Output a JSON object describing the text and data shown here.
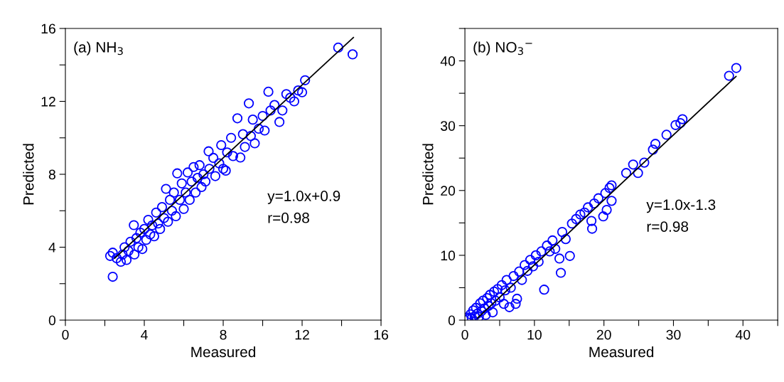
{
  "chart_data": [
    {
      "type": "scatter",
      "xlabel": "Measured",
      "ylabel": "Predicted",
      "annotations": [
        "(a) NH$_{3}$",
        "y=1.0x+0.9",
        "r=0.98"
      ],
      "xlim": [
        0,
        16
      ],
      "ylim": [
        0,
        16
      ],
      "xticks": [
        0,
        {
          "value": 2,
          "label": null
        },
        4,
        {
          "value": 6,
          "label": null
        },
        8,
        {
          "value": 10,
          "label": null
        },
        12,
        {
          "value": 14,
          "label": null
        },
        16
      ],
      "yticks": [
        0,
        {
          "value": 2,
          "label": null
        },
        4,
        {
          "value": 6,
          "label": null
        },
        8,
        {
          "value": 10,
          "label": null
        },
        12,
        {
          "value": 14,
          "label": null
        },
        16
      ],
      "grid": false,
      "legend": false,
      "marker": "circle",
      "series": [
        {
          "color": "#0000ff",
          "x": [
            2.27,
            2.4,
            2.4,
            2.6,
            2.81,
            2.9,
            3.0,
            3.1,
            3.2,
            3.3,
            3.47,
            3.5,
            3.6,
            3.7,
            3.8,
            3.9,
            4.0,
            4.1,
            4.2,
            4.3,
            4.4,
            4.5,
            4.6,
            4.7,
            4.8,
            4.9,
            5.0,
            5.1,
            5.2,
            5.3,
            5.4,
            5.5,
            5.6,
            5.67,
            5.8,
            5.9,
            6.0,
            6.1,
            6.2,
            6.3,
            6.4,
            6.5,
            6.6,
            6.7,
            6.8,
            6.9,
            7.0,
            7.1,
            7.26,
            7.3,
            7.5,
            7.6,
            7.8,
            7.9,
            8.0,
            8.13,
            8.2,
            8.4,
            8.5,
            8.72,
            8.87,
            9.0,
            9.1,
            9.3,
            9.4,
            9.5,
            9.6,
            9.8,
            10.0,
            10.1,
            10.29,
            10.4,
            10.6,
            10.85,
            11.0,
            11.2,
            11.4,
            11.6,
            11.8,
            12.0,
            12.15,
            13.83,
            14.56
          ],
          "values": [
            3.52,
            2.38,
            3.7,
            3.4,
            3.2,
            3.6,
            4.0,
            3.3,
            3.8,
            4.3,
            5.21,
            3.6,
            4.5,
            4.0,
            4.8,
            3.9,
            5.0,
            4.4,
            5.5,
            4.7,
            5.2,
            4.6,
            5.9,
            5.3,
            5.0,
            6.2,
            5.6,
            7.2,
            5.4,
            6.6,
            6.0,
            7.0,
            5.7,
            8.05,
            6.6,
            7.5,
            6.1,
            7.0,
            8.1,
            6.6,
            7.6,
            8.4,
            7.0,
            7.8,
            8.5,
            7.3,
            8.0,
            7.6,
            9.26,
            8.3,
            8.9,
            7.9,
            8.6,
            9.6,
            8.3,
            8.2,
            9.2,
            10.0,
            9.0,
            11.07,
            8.92,
            10.2,
            9.5,
            11.89,
            10.1,
            11.0,
            9.7,
            10.5,
            11.2,
            10.4,
            12.53,
            11.5,
            11.8,
            10.87,
            11.5,
            12.4,
            12.2,
            12.0,
            12.6,
            12.5,
            13.16,
            14.95,
            14.58
          ]
        },
        {
          "type": "line",
          "color": "#000000",
          "marker": "none",
          "line_style": "solid",
          "x": [
            2.5,
            14.6
          ],
          "values": [
            3.4,
            15.5
          ]
        }
      ]
    },
    {
      "type": "scatter",
      "xlabel": "Measured",
      "ylabel": "Predicted",
      "annotations": [
        "(b) NO$_{3}$$^{−}$",
        "y=1.0x-1.3",
        "r=0.98"
      ],
      "xlim": [
        0,
        45
      ],
      "ylim": [
        0,
        45
      ],
      "xticks": [
        0,
        {
          "value": 5,
          "label": null
        },
        10,
        {
          "value": 15,
          "label": null
        },
        20,
        {
          "value": 25,
          "label": null
        },
        30,
        {
          "value": 35,
          "label": null
        },
        40,
        {
          "value": 45,
          "label": null
        }
      ],
      "yticks": [
        0,
        {
          "value": 5,
          "label": null
        },
        10,
        {
          "value": 15,
          "label": null
        },
        20,
        {
          "value": 25,
          "label": null
        },
        30,
        {
          "value": 35,
          "label": null
        },
        40,
        {
          "value": 45,
          "label": null
        }
      ],
      "grid": false,
      "legend": false,
      "marker": "circle",
      "series": [
        {
          "color": "#0000ff",
          "x": [
            0.3,
            0.5,
            0.8,
            1.0,
            1.2,
            1.4,
            1.6,
            1.8,
            2.0,
            2.2,
            2.4,
            2.6,
            2.8,
            3.0,
            3.2,
            3.4,
            3.6,
            3.8,
            4.0,
            4.2,
            4.4,
            4.7,
            5.0,
            5.3,
            5.6,
            5.8,
            6.0,
            6.4,
            6.6,
            7.0,
            7.3,
            7.5,
            7.8,
            8.2,
            8.6,
            9.0,
            9.4,
            9.8,
            10.2,
            10.6,
            11.0,
            11.4,
            11.8,
            12.2,
            12.6,
            13.0,
            13.6,
            13.8,
            14.0,
            14.5,
            15.1,
            15.4,
            16.0,
            16.6,
            17.2,
            17.7,
            18.2,
            18.3,
            18.6,
            19.2,
            19.9,
            20.2,
            20.4,
            20.8,
            21.1,
            21.1,
            23.2,
            24.2,
            24.9,
            25.8,
            27.05,
            27.4,
            29.0,
            30.3,
            31.0,
            31.3,
            38.0,
            39.04
          ],
          "values": [
            0.4,
            0.2,
            0.9,
            0.3,
            1.5,
            0.6,
            1.9,
            1.0,
            0.5,
            2.6,
            1.4,
            3.0,
            1.8,
            0.8,
            3.4,
            2.2,
            3.9,
            2.6,
            1.2,
            4.4,
            3.0,
            4.8,
            3.5,
            5.4,
            2.5,
            4.6,
            6.2,
            2.0,
            5.0,
            6.8,
            2.5,
            3.3,
            7.5,
            6.2,
            8.5,
            7.6,
            9.3,
            8.3,
            10.0,
            9.0,
            10.6,
            4.7,
            11.5,
            10.6,
            12.3,
            11.0,
            9.5,
            7.3,
            13.6,
            12.5,
            9.9,
            14.9,
            15.6,
            16.3,
            16.6,
            17.4,
            15.3,
            14.1,
            18.0,
            18.8,
            16.0,
            19.6,
            17.0,
            20.4,
            18.4,
            20.8,
            22.7,
            24.0,
            22.7,
            24.3,
            26.3,
            27.2,
            28.6,
            30.1,
            30.4,
            31.0,
            37.7,
            38.9
          ]
        },
        {
          "type": "line",
          "color": "#000000",
          "marker": "none",
          "line_style": "solid",
          "x": [
            1.8,
            39.0
          ],
          "values": [
            0.3,
            37.6
          ]
        }
      ]
    }
  ]
}
